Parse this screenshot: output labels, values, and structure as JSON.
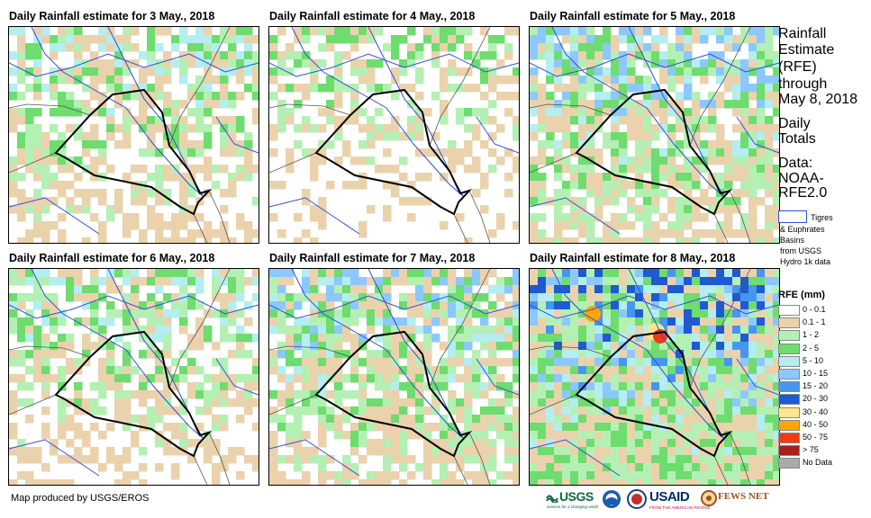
{
  "panels": [
    {
      "title": "Daily Rainfall estimate for 3 May., 2018",
      "intensity": 0.5
    },
    {
      "title": "Daily Rainfall estimate for 4 May., 2018",
      "intensity": 0.25
    },
    {
      "title": "Daily Rainfall estimate for 5 May., 2018",
      "intensity": 0.7
    },
    {
      "title": "Daily Rainfall estimate for 6 May., 2018",
      "intensity": 0.45
    },
    {
      "title": "Daily Rainfall estimate for 7 May., 2018",
      "intensity": 0.65
    },
    {
      "title": "Daily Rainfall estimate for 8 May., 2018",
      "intensity": 0.95
    }
  ],
  "side": {
    "heading_1": "Rainfall",
    "heading_2": "Estimate",
    "heading_3": "(RFE)",
    "through": "through",
    "date": "May 8, 2018",
    "daily": "Daily",
    "totals": "Totals",
    "data": "Data:",
    "noaa": "NOAA-",
    "rfe": "RFE2.0"
  },
  "basin": {
    "line1": "Tigres",
    "line2": "& Euphrates",
    "line3": "Basins",
    "line4": "from USGS",
    "line5": "Hydro 1k data"
  },
  "legend": {
    "title": "RFE (mm)",
    "items": [
      {
        "label": "0 - 0.1",
        "color": "#ffffff"
      },
      {
        "label": "0.1 - 1",
        "color": "#ead2ac"
      },
      {
        "label": "1 - 2",
        "color": "#b4f0b4"
      },
      {
        "label": "2 - 5",
        "color": "#6edc6e"
      },
      {
        "label": "5 - 10",
        "color": "#b4eef0"
      },
      {
        "label": "10 - 15",
        "color": "#8cc8ff"
      },
      {
        "label": "15 - 20",
        "color": "#4696f0"
      },
      {
        "label": "20 - 30",
        "color": "#1e5ad2"
      },
      {
        "label": "30 - 40",
        "color": "#ffe68c"
      },
      {
        "label": "40 - 50",
        "color": "#ffa500"
      },
      {
        "label": "50 - 75",
        "color": "#f03c14"
      },
      {
        "label": "> 75",
        "color": "#aa1e1e"
      },
      {
        "label": "No Data",
        "color": "#aaaaaa"
      }
    ]
  },
  "footer": "Map produced by USGS/EROS",
  "logos": {
    "usgs": "USGS",
    "usgs_tagline": "science for a changing world",
    "usaid": "USAID",
    "usaid_tagline": "FROM THE AMERICAN PEOPLE",
    "fewsnet": "FEWS NET"
  }
}
